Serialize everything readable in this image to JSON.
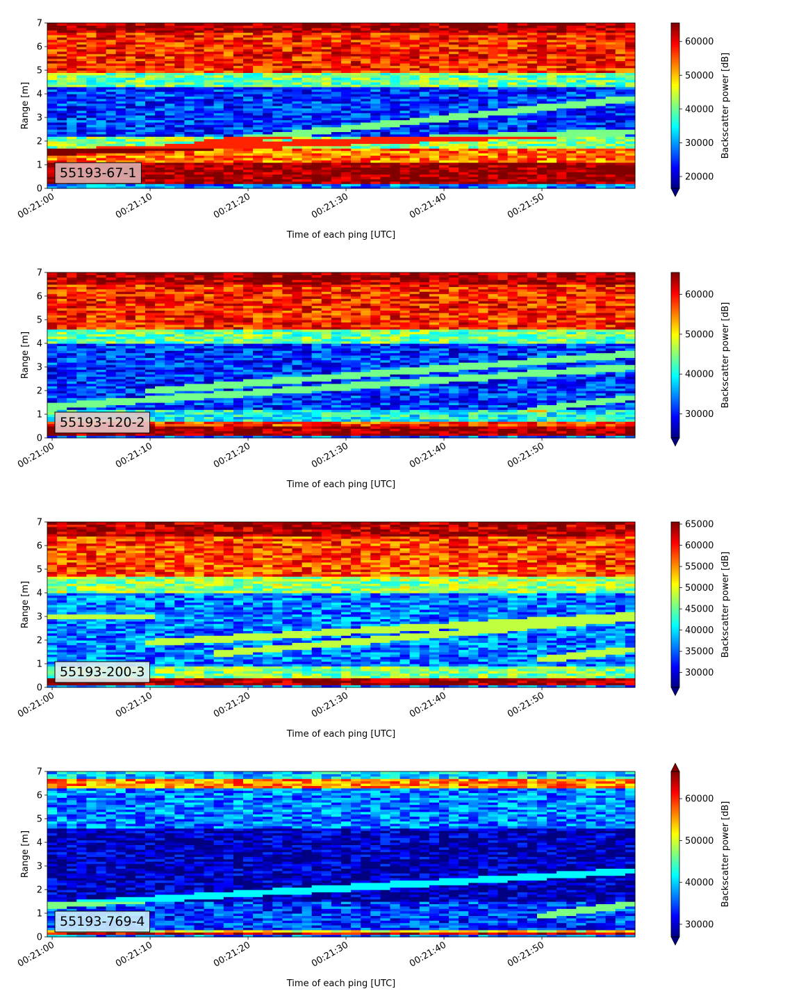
{
  "chart_data": [
    {
      "type": "heatmap",
      "label": "55193-67-1",
      "label_box_color": "#dcb1b1",
      "xlabel": "Time of each ping [UTC]",
      "ylabel": "Range [m]",
      "colorbar_label": "Backscatter power [dB]",
      "xlim": [
        "00:20:59.5",
        "00:21:59.5"
      ],
      "ylim": [
        0,
        7
      ],
      "x_ticks": [
        "00:21:00",
        "00:21:10",
        "00:21:20",
        "00:21:30",
        "00:21:40",
        "00:21:50"
      ],
      "y_ticks": [
        0,
        1,
        2,
        3,
        4,
        5,
        6,
        7
      ],
      "clim": [
        16500,
        65500
      ],
      "colorbar_ticks": [
        20000,
        30000,
        40000,
        50000,
        60000
      ],
      "colorbar_extend": "min",
      "colormap": "jet",
      "bands": [
        {
          "range_m": [
            0.2,
            1.1
          ],
          "level": 65000
        },
        {
          "range_m": [
            1.1,
            1.7
          ],
          "level": 54000
        },
        {
          "range_m": [
            1.7,
            2.2
          ],
          "level": 42000
        },
        {
          "range_m": [
            2.2,
            4.3
          ],
          "level": 25000
        },
        {
          "range_m": [
            4.3,
            4.9
          ],
          "level": 40000
        },
        {
          "range_m": [
            4.9,
            6.6
          ],
          "level": 58000
        },
        {
          "range_m": [
            6.6,
            7.0
          ],
          "level": 64000
        }
      ],
      "echo_traces": [
        {
          "start": [
            "00:21:00",
            1.55
          ],
          "end": [
            "00:21:59",
            2.4
          ]
        },
        {
          "start": [
            "00:21:15",
            1.9
          ],
          "end": [
            "00:21:59",
            3.8
          ]
        }
      ]
    },
    {
      "type": "heatmap",
      "label": "55193-120-2",
      "label_box_color": "#e8c6c6",
      "xlabel": "Time of each ping [UTC]",
      "ylabel": "Range [m]",
      "colorbar_label": "Backscatter power [dB]",
      "xlim": [
        "00:20:59.5",
        "00:21:59.5"
      ],
      "ylim": [
        0,
        7
      ],
      "x_ticks": [
        "00:21:00",
        "00:21:10",
        "00:21:20",
        "00:21:30",
        "00:21:40",
        "00:21:50"
      ],
      "y_ticks": [
        0,
        1,
        2,
        3,
        4,
        5,
        6,
        7
      ],
      "clim": [
        24000,
        65500
      ],
      "colorbar_ticks": [
        30000,
        40000,
        50000,
        60000
      ],
      "colorbar_extend": "min",
      "colormap": "jet",
      "bands": [
        {
          "range_m": [
            0.1,
            0.5
          ],
          "level": 65000
        },
        {
          "range_m": [
            0.5,
            0.75
          ],
          "level": 58000
        },
        {
          "range_m": [
            0.75,
            1.2
          ],
          "level": 40000
        },
        {
          "range_m": [
            1.2,
            4.0
          ],
          "level": 31000
        },
        {
          "range_m": [
            4.0,
            4.6
          ],
          "level": 44000
        },
        {
          "range_m": [
            4.6,
            6.5
          ],
          "level": 59000
        },
        {
          "range_m": [
            6.5,
            7.0
          ],
          "level": 64000
        }
      ],
      "echo_traces": [
        {
          "start": [
            "00:21:00",
            1.35
          ],
          "end": [
            "00:21:59",
            3.0
          ]
        },
        {
          "start": [
            "00:21:10",
            2.0
          ],
          "end": [
            "00:21:59",
            3.55
          ]
        },
        {
          "start": [
            "00:21:49",
            1.2
          ],
          "end": [
            "00:21:59",
            1.7
          ]
        }
      ]
    },
    {
      "type": "heatmap",
      "label": "55193-200-3",
      "label_box_color": "#dfeef0",
      "xlabel": "Time of each ping [UTC]",
      "ylabel": "Range [m]",
      "colorbar_label": "Backscatter power [dB]",
      "xlim": [
        "00:20:59.5",
        "00:21:59.5"
      ],
      "ylim": [
        0,
        7
      ],
      "x_ticks": [
        "00:21:00",
        "00:21:10",
        "00:21:20",
        "00:21:30",
        "00:21:40",
        "00:21:50"
      ],
      "y_ticks": [
        0,
        1,
        2,
        3,
        4,
        5,
        6,
        7
      ],
      "clim": [
        26500,
        65500
      ],
      "colorbar_ticks": [
        30000,
        35000,
        40000,
        45000,
        50000,
        55000,
        60000,
        65000
      ],
      "colorbar_extend": "min",
      "colormap": "jet",
      "bands": [
        {
          "range_m": [
            0.1,
            0.45
          ],
          "level": 65000
        },
        {
          "range_m": [
            0.45,
            0.9
          ],
          "level": 46000
        },
        {
          "range_m": [
            0.9,
            4.0
          ],
          "level": 36000
        },
        {
          "range_m": [
            4.0,
            4.7
          ],
          "level": 47000
        },
        {
          "range_m": [
            4.7,
            6.4
          ],
          "level": 58000
        },
        {
          "range_m": [
            6.4,
            7.0
          ],
          "level": 64000
        }
      ],
      "echo_traces": [
        {
          "start": [
            "00:21:10",
            1.9
          ],
          "end": [
            "00:21:59",
            3.05
          ]
        },
        {
          "start": [
            "00:21:00",
            3.0
          ],
          "end": [
            "00:21:10",
            3.0
          ]
        },
        {
          "start": [
            "00:21:17",
            1.45
          ],
          "end": [
            "00:21:59",
            2.95
          ]
        },
        {
          "start": [
            "00:21:50",
            1.2
          ],
          "end": [
            "00:21:59",
            1.6
          ]
        }
      ]
    },
    {
      "type": "heatmap",
      "label": "55193-769-4",
      "label_box_color": "#cdeffb",
      "xlabel": "Time of each ping [UTC]",
      "ylabel": "Range [m]",
      "colorbar_label": "Backscatter power [dB]",
      "xlim": [
        "00:20:59.5",
        "00:21:59.5"
      ],
      "ylim": [
        0,
        7
      ],
      "x_ticks": [
        "00:21:00",
        "00:21:10",
        "00:21:20",
        "00:21:30",
        "00:21:40",
        "00:21:50"
      ],
      "y_ticks": [
        0,
        1,
        2,
        3,
        4,
        5,
        6,
        7
      ],
      "clim": [
        27000,
        66500
      ],
      "colorbar_ticks": [
        30000,
        40000,
        50000,
        60000
      ],
      "colorbar_extend": "both",
      "colormap": "jet",
      "bands": [
        {
          "range_m": [
            0.1,
            0.2
          ],
          "level": 64000
        },
        {
          "range_m": [
            0.2,
            0.35
          ],
          "level": 52000
        },
        {
          "range_m": [
            0.35,
            1.5
          ],
          "level": 34000
        },
        {
          "range_m": [
            1.5,
            4.6
          ],
          "level": 29000
        },
        {
          "range_m": [
            4.6,
            6.3
          ],
          "level": 37000
        },
        {
          "range_m": [
            6.3,
            6.75
          ],
          "level": 56000
        },
        {
          "range_m": [
            6.75,
            7.0
          ],
          "level": 40000
        }
      ],
      "echo_traces": [
        {
          "start": [
            "00:21:00",
            1.35
          ],
          "end": [
            "00:21:59",
            2.8
          ]
        },
        {
          "start": [
            "00:21:50",
            0.9
          ],
          "end": [
            "00:21:59",
            1.4
          ]
        }
      ]
    }
  ]
}
